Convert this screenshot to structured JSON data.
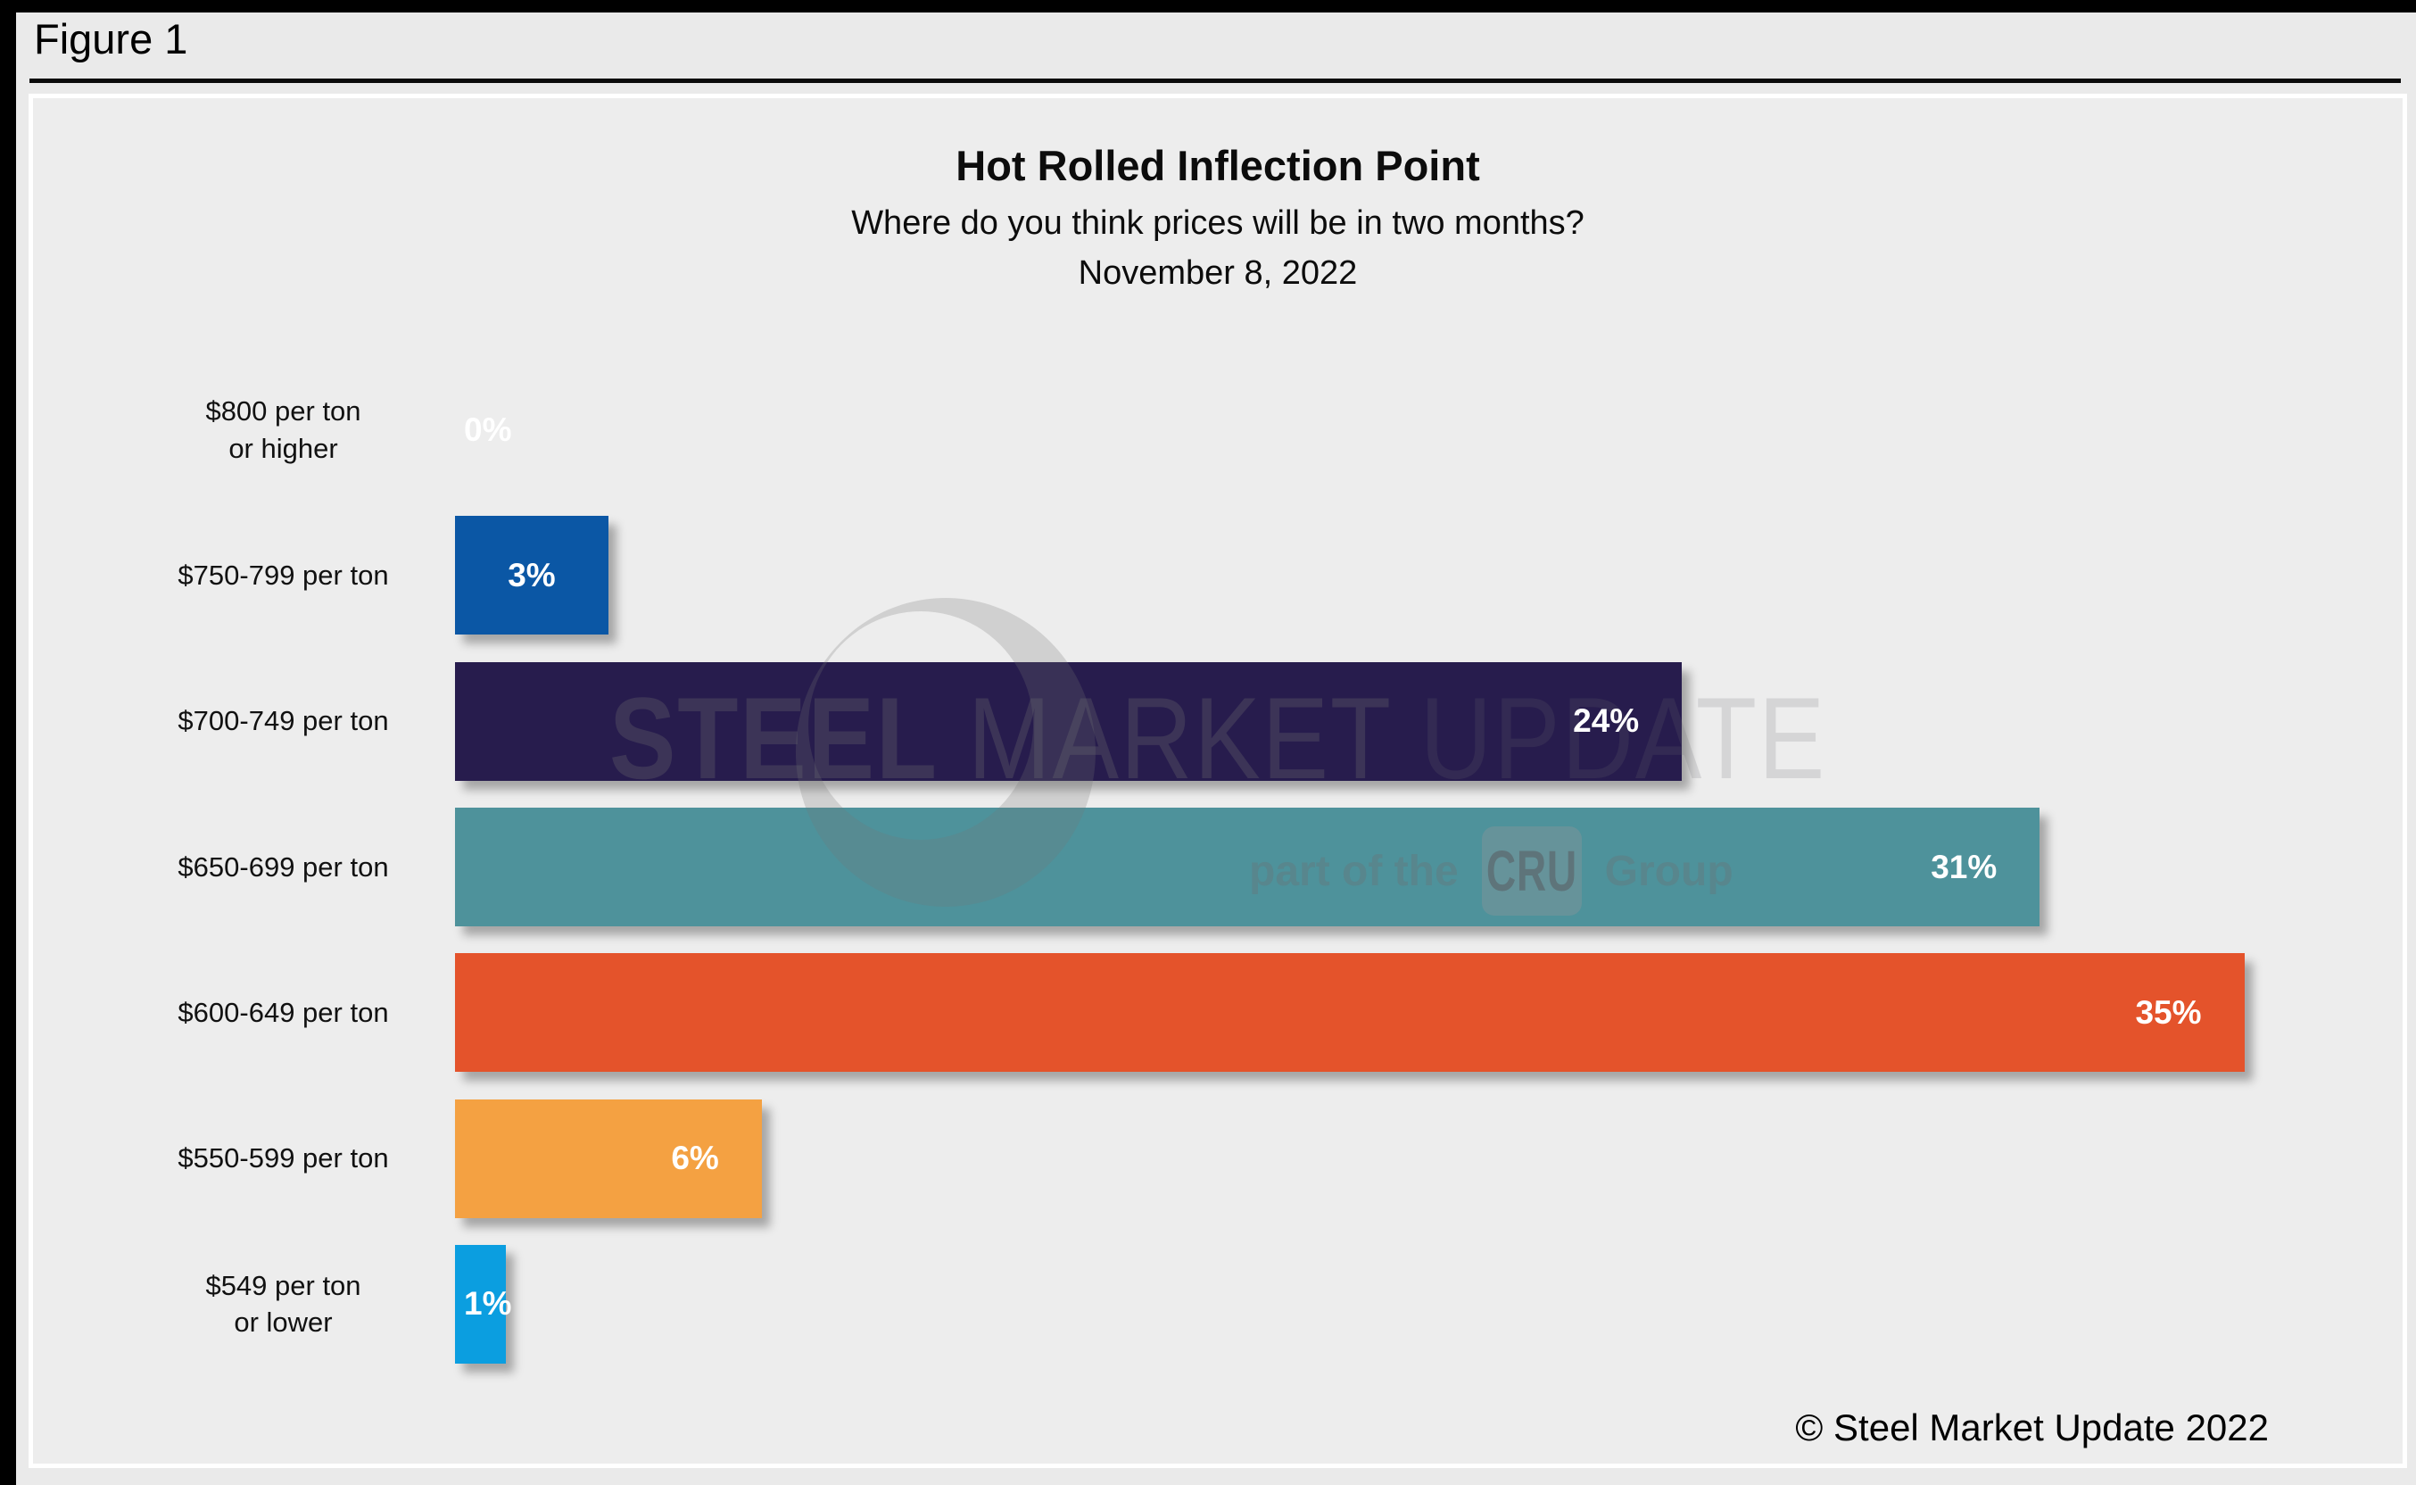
{
  "figure_label": "Figure 1",
  "copyright": "© Steel Market Update 2022",
  "watermark": {
    "steel": "STEEL",
    "market": " MARKET ",
    "update": "UPDATE",
    "part_prefix": "part of the",
    "cru": "CRU",
    "group": "Group",
    "logo": "smu-crescent"
  },
  "colors": {
    "canvas_bg": "#eaeaea",
    "panel_bg": "#ededed",
    "panel_border": "#ffffff",
    "frame": "#000000",
    "value_label": "#ffffff",
    "text": "#0c0c0c"
  },
  "chart_data": {
    "type": "bar",
    "orientation": "horizontal",
    "title": "Hot Rolled Inflection Point",
    "subtitle": "Where do you think prices will be in two months?",
    "date": "November 8, 2022",
    "categories": [
      [
        "$800 per ton",
        "or higher"
      ],
      [
        "$750-799 per ton"
      ],
      [
        "$700-749 per ton"
      ],
      [
        "$650-699 per ton"
      ],
      [
        "$600-649 per ton"
      ],
      [
        "$550-599 per ton"
      ],
      [
        "$549 per ton",
        "or lower"
      ]
    ],
    "values": [
      0,
      3,
      24,
      31,
      35,
      6,
      1
    ],
    "value_labels": [
      "0%",
      "3%",
      "24%",
      "31%",
      "35%",
      "6%",
      "1%"
    ],
    "bar_colors": [
      null,
      "#0b57a5",
      "#271c4d",
      "#4e929b",
      "#e4532b",
      "#f4a142",
      "#0b9ee0"
    ],
    "xlim": [
      0,
      38
    ],
    "value_suffix": "%",
    "grid": false,
    "legend": false
  }
}
